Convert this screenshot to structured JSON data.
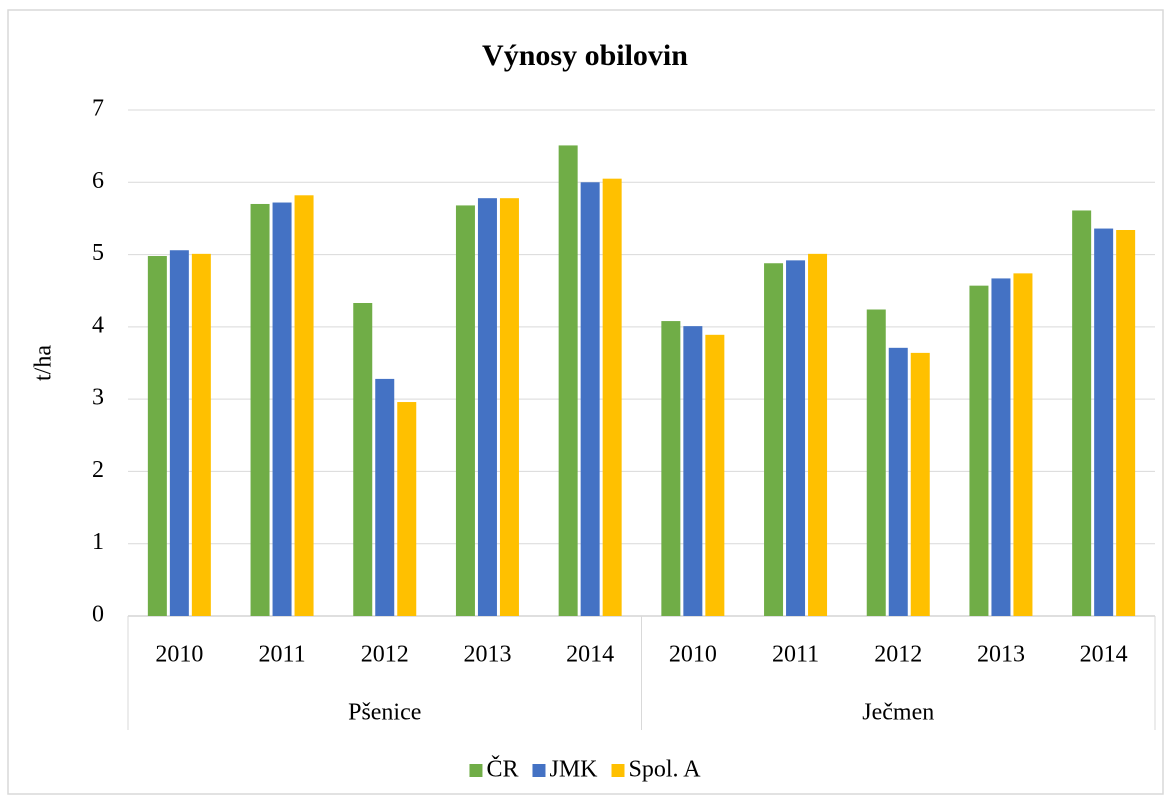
{
  "chart_data": {
    "type": "bar",
    "title": "Výnosy obilovin",
    "y_label": "t/ha",
    "categories": [
      "2010",
      "2011",
      "2012",
      "2013",
      "2014",
      "2010",
      "2011",
      "2012",
      "2013",
      "2014"
    ],
    "groups": [
      "Pšenice",
      "Ječmen"
    ],
    "series": [
      {
        "name": "ČR",
        "color": "#70ad47",
        "values": [
          4.98,
          5.7,
          4.33,
          5.68,
          6.51,
          4.08,
          4.88,
          4.24,
          4.57,
          5.61
        ]
      },
      {
        "name": "JMK",
        "color": "#4472c4",
        "values": [
          5.06,
          5.72,
          3.28,
          5.78,
          6.0,
          4.01,
          4.92,
          3.71,
          4.67,
          5.36
        ]
      },
      {
        "name": "Spol. A",
        "color": "#ffc000",
        "values": [
          5.01,
          5.82,
          2.96,
          5.78,
          6.05,
          3.89,
          5.01,
          3.64,
          4.74,
          5.34
        ]
      }
    ],
    "ylim": [
      0,
      7
    ],
    "yticks": [
      0,
      1,
      2,
      3,
      4,
      5,
      6,
      7
    ],
    "grid": true,
    "legend": "bottom"
  }
}
